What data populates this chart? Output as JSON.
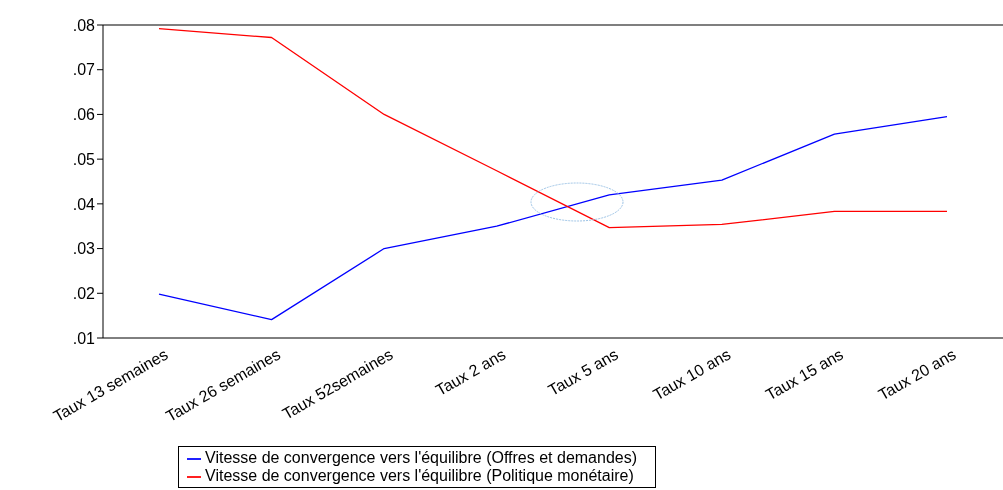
{
  "chart_data": {
    "type": "line",
    "categories": [
      "Taux 13 semaines",
      "Taux 26 semaines",
      "Taux 52semaines",
      "Taux 2 ans",
      "Taux 5 ans",
      "Taux 10 ans",
      "Taux 15 ans",
      "Taux 20 ans"
    ],
    "series": [
      {
        "name": "Vitesse de convergence vers l'équilibre (Offres et demandes)",
        "color": "#0000ff",
        "values": [
          0.0198,
          0.0141,
          0.03,
          0.035,
          0.042,
          0.0453,
          0.0556,
          0.0595
        ]
      },
      {
        "name": "Vitesse de convergence vers l'équilibre (Politique monétaire)",
        "color": "#ff0000",
        "values": [
          0.0792,
          0.0772,
          0.06,
          0.0474,
          0.0347,
          0.0354,
          0.0383,
          0.0383
        ]
      }
    ],
    "ylim": [
      0.01,
      0.08
    ],
    "yticks": [
      {
        "value": 0.01,
        "label": ".01"
      },
      {
        "value": 0.02,
        "label": ".02"
      },
      {
        "value": 0.03,
        "label": ".03"
      },
      {
        "value": 0.04,
        "label": ".04"
      },
      {
        "value": 0.05,
        "label": ".05"
      },
      {
        "value": 0.06,
        "label": ".06"
      },
      {
        "value": 0.07,
        "label": ".07"
      },
      {
        "value": 0.08,
        "label": ".08"
      }
    ],
    "grid": false,
    "legend": "bottom",
    "marker": "none",
    "line_style": "solid"
  }
}
